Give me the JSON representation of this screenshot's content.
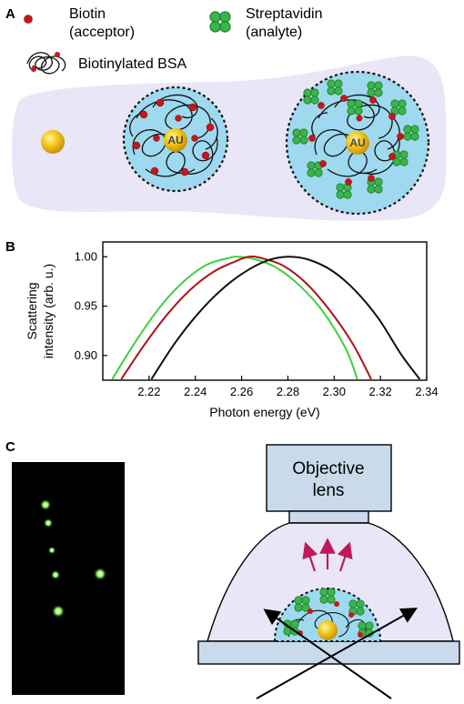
{
  "panels": {
    "a": {
      "letter": "A",
      "legend": {
        "biotin_line1": "Biotin",
        "biotin_line2": "(acceptor)",
        "strep_line1": "Streptavidin",
        "strep_line2": "(analyte)",
        "bsa": "Biotinylated BSA"
      },
      "au_label_1": "AU",
      "au_label_2": "AU",
      "colors": {
        "biotin": "#c8161d",
        "streptavidin": "#3ab54a",
        "shell": "#9fd9ef",
        "background": "#e8e6f7",
        "gold": "#f2c21a"
      }
    },
    "b": {
      "letter": "B"
    },
    "c": {
      "letter": "C",
      "objective_line1": "Objective",
      "objective_line2": "lens",
      "colors": {
        "dark_field": "#000000",
        "spot": "#9cff6a",
        "arrows_up": "#c2185b"
      }
    }
  },
  "chart_data": {
    "type": "line",
    "xlabel": "Photon energy (eV)",
    "ylabel_line1": "Scattering",
    "ylabel_line2": "intensity (arb. u.)",
    "xlim": [
      2.2,
      2.34
    ],
    "ylim": [
      0.875,
      1.015
    ],
    "xticks": [
      2.22,
      2.24,
      2.26,
      2.28,
      2.3,
      2.32,
      2.34
    ],
    "xtick_labels": [
      "2.22",
      "2.24",
      "2.26",
      "2.28",
      "2.30",
      "2.32",
      "2.34"
    ],
    "yticks": [
      0.9,
      0.95,
      1.0
    ],
    "ytick_labels": [
      "0.90",
      "0.95",
      "1.00"
    ],
    "series": [
      {
        "color": "#3ed13e",
        "x": [
          2.204,
          2.215,
          2.225,
          2.235,
          2.245,
          2.255,
          2.258,
          2.265,
          2.275,
          2.285,
          2.295,
          2.305,
          2.31
        ],
        "y": [
          0.876,
          0.917,
          0.95,
          0.975,
          0.992,
          0.999,
          1.0,
          0.998,
          0.989,
          0.971,
          0.945,
          0.907,
          0.876
        ]
      },
      {
        "color": "#b0111a",
        "x": [
          2.208,
          2.218,
          2.228,
          2.238,
          2.248,
          2.258,
          2.263,
          2.268,
          2.278,
          2.288,
          2.298,
          2.308,
          2.316
        ],
        "y": [
          0.876,
          0.911,
          0.942,
          0.967,
          0.985,
          0.996,
          1.0,
          0.999,
          0.991,
          0.973,
          0.946,
          0.912,
          0.876
        ]
      },
      {
        "color": "#111111",
        "x": [
          2.221,
          2.231,
          2.241,
          2.251,
          2.261,
          2.271,
          2.28,
          2.289,
          2.299,
          2.309,
          2.319,
          2.329,
          2.337
        ],
        "y": [
          0.876,
          0.912,
          0.942,
          0.966,
          0.984,
          0.996,
          1.0,
          0.997,
          0.986,
          0.966,
          0.938,
          0.901,
          0.876
        ]
      }
    ]
  }
}
